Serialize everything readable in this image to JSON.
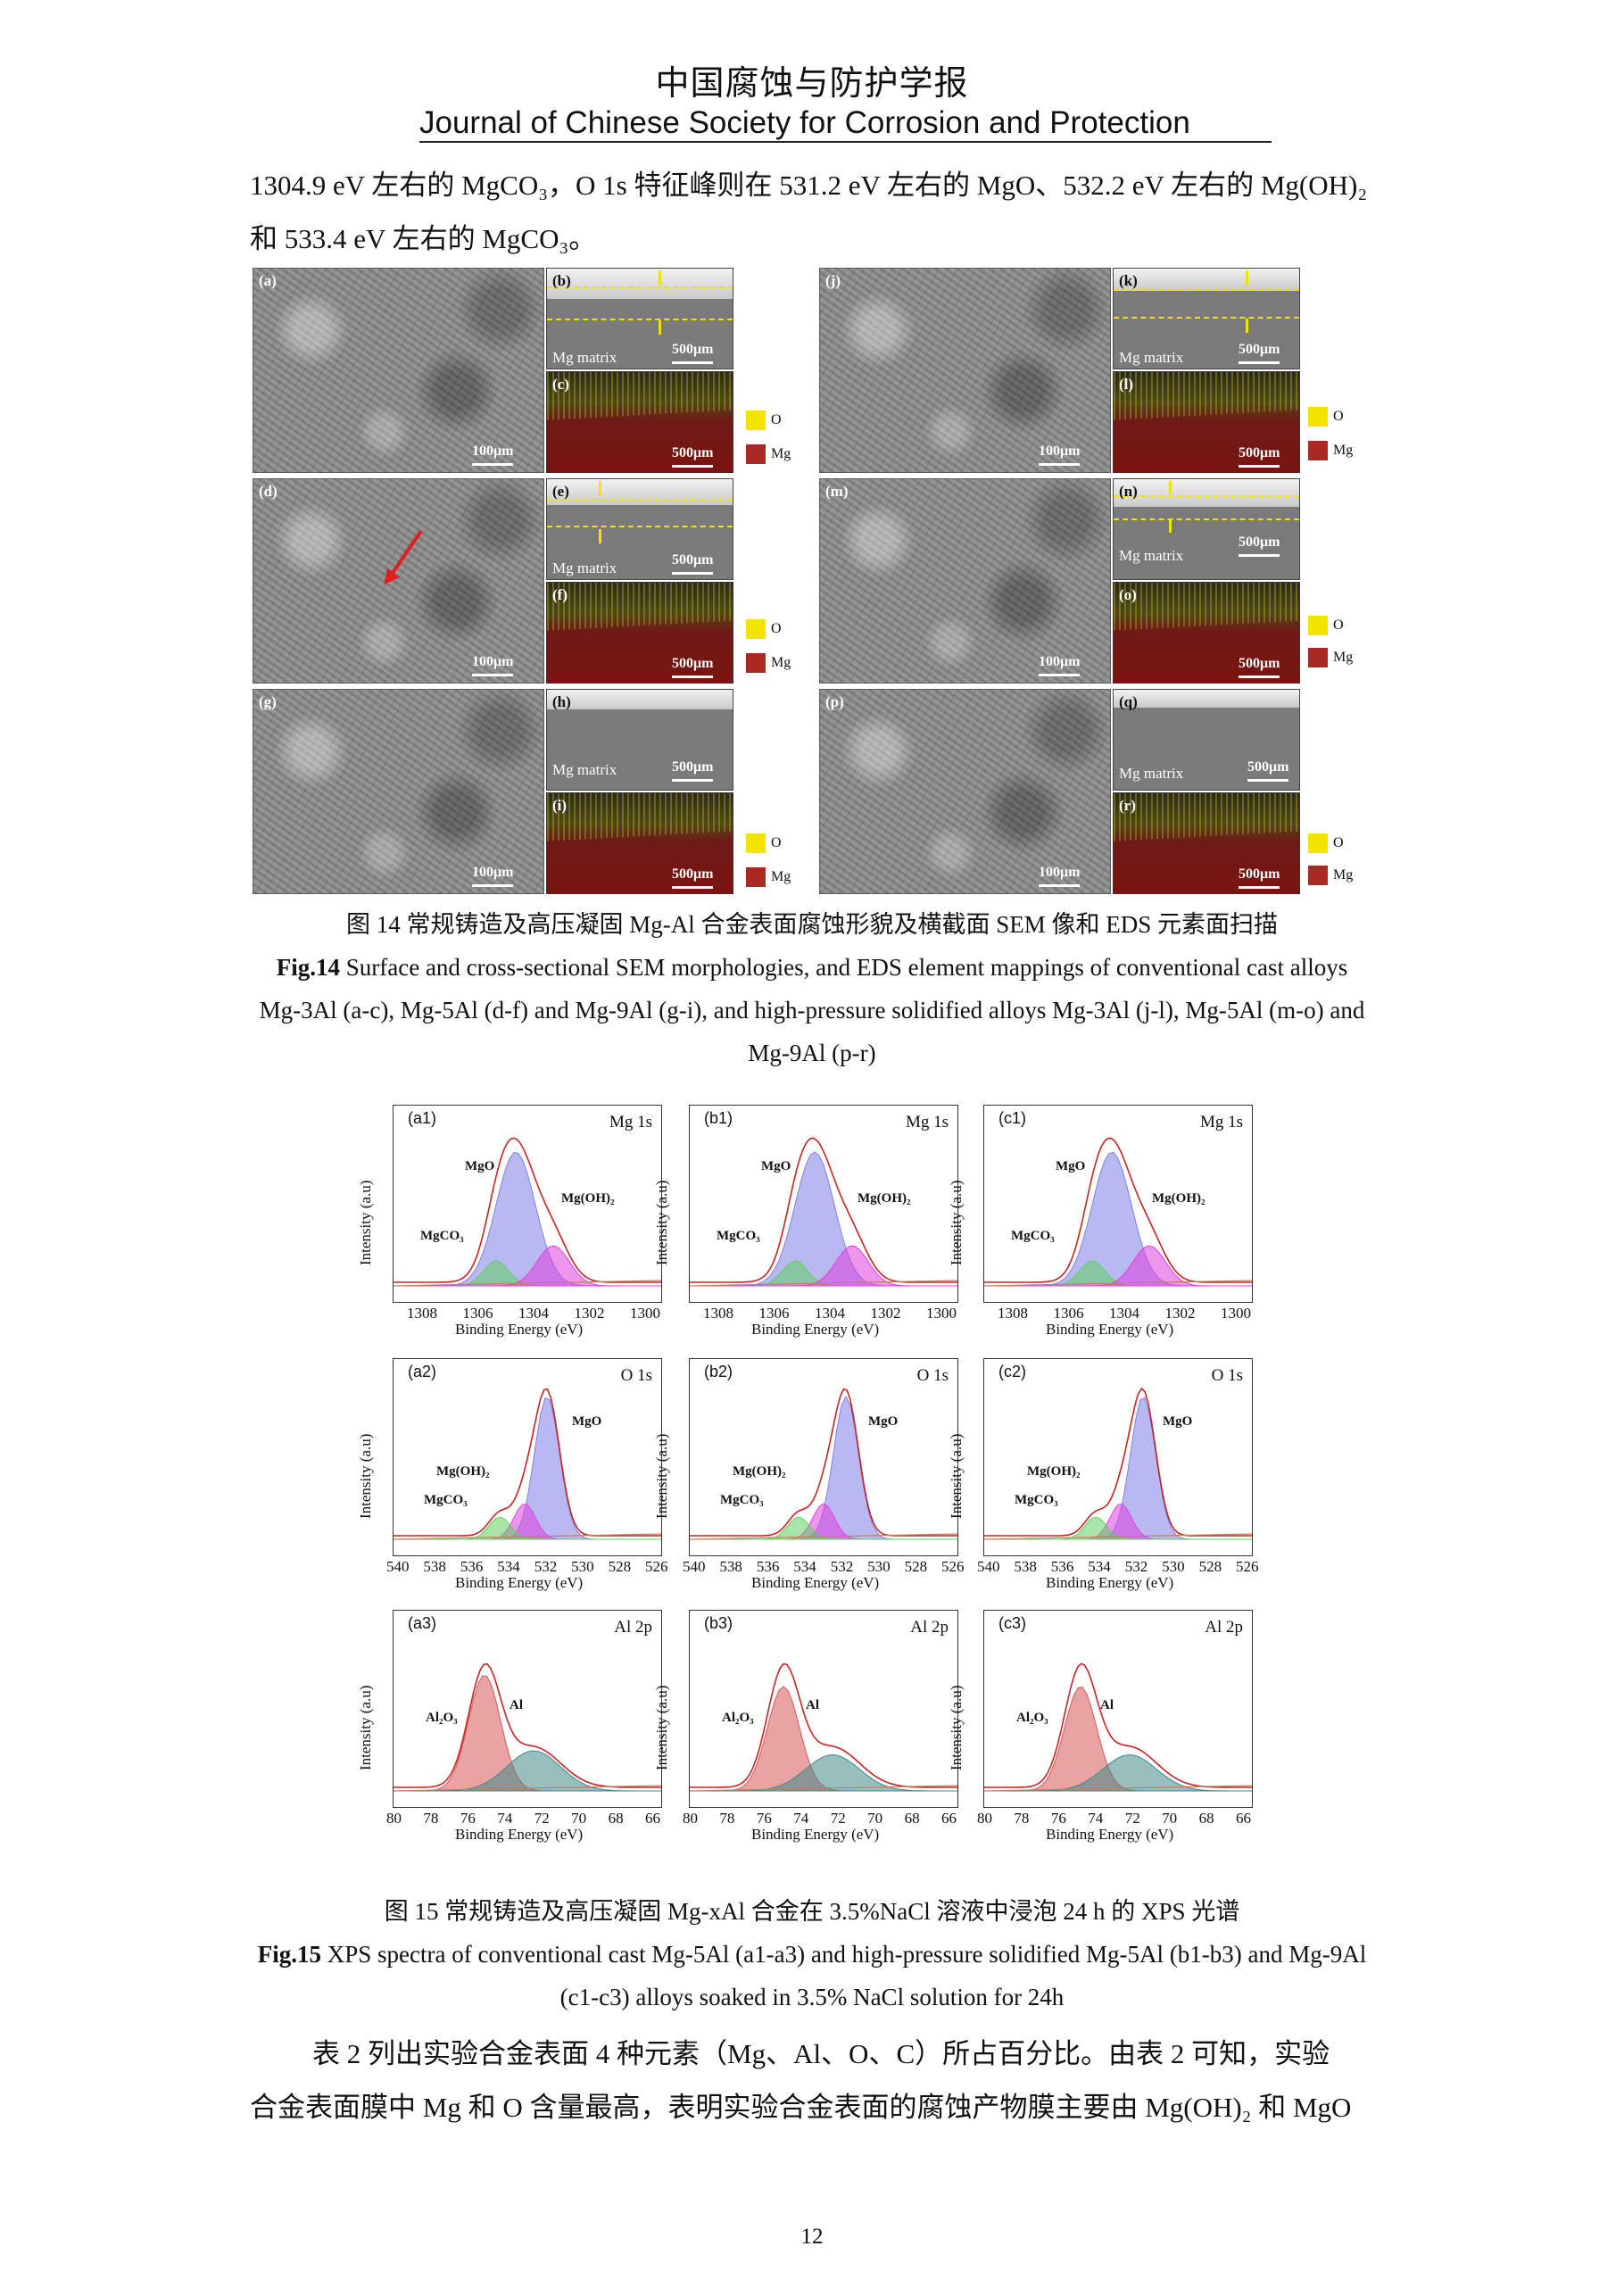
{
  "header": {
    "journal_cn": "中国腐蚀与防护学报",
    "journal_en": "Journal of Chinese Society for Corrosion and Protection"
  },
  "text_top": {
    "line1": "1304.9 eV 左右的 MgCO₃，O 1s 特征峰则在 531.2 eV 左右的 MgO、532.2 eV 左右的 Mg(OH)₂",
    "line2": "和 533.4 eV 左右的 MgCO₃。"
  },
  "fig14": {
    "panel_labels": {
      "a": "(a)",
      "b": "(b)",
      "c": "(c)",
      "d": "(d)",
      "e": "(e)",
      "f": "(f)",
      "g": "(g)",
      "h": "(h)",
      "i": "(i)",
      "j": "(j)",
      "k": "(k)",
      "l": "(l)",
      "m": "(m)",
      "n": "(n)",
      "o": "(o)",
      "p": "(p)",
      "q": "(q)",
      "r": "(r)"
    },
    "scale_100": "100μm",
    "scale_500": "500μm",
    "mg_matrix": "Mg matrix",
    "legend": [
      {
        "element": "O",
        "color": "#f5e400"
      },
      {
        "element": "Mg",
        "color": "#a82a22"
      }
    ],
    "caption_cn": "图 14 常规铸造及高压凝固 Mg-Al 合金表面腐蚀形貌及横截面 SEM 像和 EDS 元素面扫描",
    "caption_en_bold": "Fig.14",
    "caption_en_1": " Surface and cross-sectional SEM morphologies, and EDS element mappings of conventional cast alloys",
    "caption_en_2": "Mg-3Al (a-c), Mg-5Al (d-f) and Mg-9Al (g-i), and high-pressure solidified alloys Mg-3Al (j-l), Mg-5Al (m-o) and",
    "caption_en_3": "Mg-9Al (p-r)"
  },
  "fig15": {
    "ylabel": "Intensity (a.u)",
    "xlabel": "Binding Energy (eV)",
    "rows": [
      {
        "element": "Mg 1s",
        "ticks": [
          "1308",
          "1306",
          "1304",
          "1302",
          "1300"
        ],
        "panels": [
          "(a1)",
          "(b1)",
          "(c1)"
        ],
        "peaks": [
          "MgO",
          "MgCO₃",
          "Mg(OH)₂"
        ]
      },
      {
        "element": "O 1s",
        "ticks": [
          "540",
          "538",
          "536",
          "534",
          "532",
          "530",
          "528",
          "526"
        ],
        "panels": [
          "(a2)",
          "(b2)",
          "(c2)"
        ],
        "peaks": [
          "MgO",
          "Mg(OH)₂",
          "MgCO₃"
        ]
      },
      {
        "element": "Al 2p",
        "ticks": [
          "80",
          "78",
          "76",
          "74",
          "72",
          "70",
          "68",
          "66"
        ],
        "panels": [
          "(a3)",
          "(b3)",
          "(c3)"
        ],
        "peaks": [
          "Al₂O₃",
          "Al"
        ]
      }
    ],
    "caption_cn": "图 15 常规铸造及高压凝固 Mg-xAl 合金在 3.5%NaCl 溶液中浸泡 24 h 的 XPS 光谱",
    "caption_en_bold": "Fig.15",
    "caption_en_1": " XPS spectra of conventional cast Mg-5Al (a1-a3) and high-pressure solidified Mg-5Al (b1-b3) and Mg-9Al",
    "caption_en_2": "(c1-c3) alloys soaked in 3.5% NaCl solution for 24h"
  },
  "text_bottom": {
    "line1": "表 2 列出实验合金表面 4 种元素（Mg、Al、O、C）所占百分比。由表 2 可知，实验",
    "line2": "合金表面膜中 Mg 和 O 含量最高，表明实验合金表面的腐蚀产物膜主要由 Mg(OH)₂ 和 MgO"
  },
  "page_number": "12"
}
